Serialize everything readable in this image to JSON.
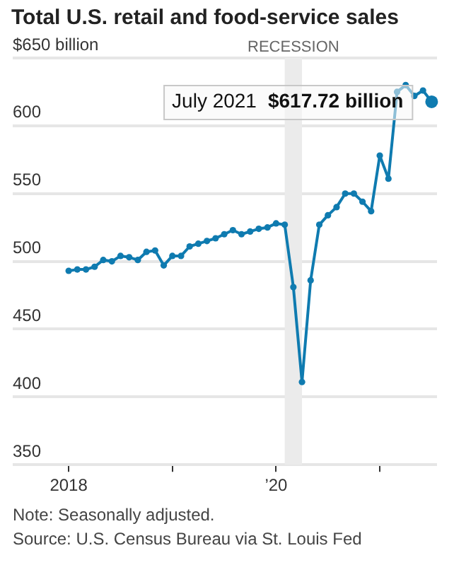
{
  "chart_data": {
    "type": "line",
    "title": "Total U.S. retail and food-service sales",
    "x": [
      "2018-01",
      "2018-02",
      "2018-03",
      "2018-04",
      "2018-05",
      "2018-06",
      "2018-07",
      "2018-08",
      "2018-09",
      "2018-10",
      "2018-11",
      "2018-12",
      "2019-01",
      "2019-02",
      "2019-03",
      "2019-04",
      "2019-05",
      "2019-06",
      "2019-07",
      "2019-08",
      "2019-09",
      "2019-10",
      "2019-11",
      "2019-12",
      "2020-01",
      "2020-02",
      "2020-03",
      "2020-04",
      "2020-05",
      "2020-06",
      "2020-07",
      "2020-08",
      "2020-09",
      "2020-10",
      "2020-11",
      "2020-12",
      "2021-01",
      "2021-02",
      "2021-03",
      "2021-04",
      "2021-05",
      "2021-06",
      "2021-07"
    ],
    "series": [
      {
        "color": "#0f7bb0",
        "values": [
          493,
          494,
          494,
          496,
          501,
          500,
          504,
          503,
          501,
          507,
          508,
          497,
          504,
          504,
          511,
          513,
          515,
          517,
          520,
          523,
          520,
          522,
          524,
          525,
          528,
          527,
          481,
          411,
          486,
          527,
          534,
          540,
          550,
          550,
          544,
          537,
          578,
          561,
          625,
          630,
          622,
          626,
          617.72
        ]
      }
    ],
    "xlim": [
      "2017-06-17",
      "2021-07-20"
    ],
    "xticks": [
      {
        "value": "2018-01",
        "label": "2018"
      },
      {
        "value": "2019-01",
        "label": null
      },
      {
        "value": "2020-01",
        "label": "’20"
      },
      {
        "value": "2021-01",
        "label": null
      }
    ],
    "ylim": [
      350,
      650
    ],
    "yticks": [
      350,
      400,
      450,
      500,
      550,
      600,
      {
        "value": 650,
        "label": "$650 billion"
      }
    ],
    "grid": "y",
    "legend": false,
    "marker": "circle",
    "line_style": "solid",
    "bands": [
      {
        "axis": "x",
        "from": "2020-02",
        "to": "2020-04",
        "label": "RECESSION",
        "color": "#ebebeb"
      }
    ],
    "annotations": [
      {
        "text": "July 2021 $617.72 billion",
        "x": "2021-07",
        "y": 617.72
      },
      "Note: Seasonally adjusted.",
      "Source: U.S. Census Bureau via St. Louis Fed"
    ]
  }
}
